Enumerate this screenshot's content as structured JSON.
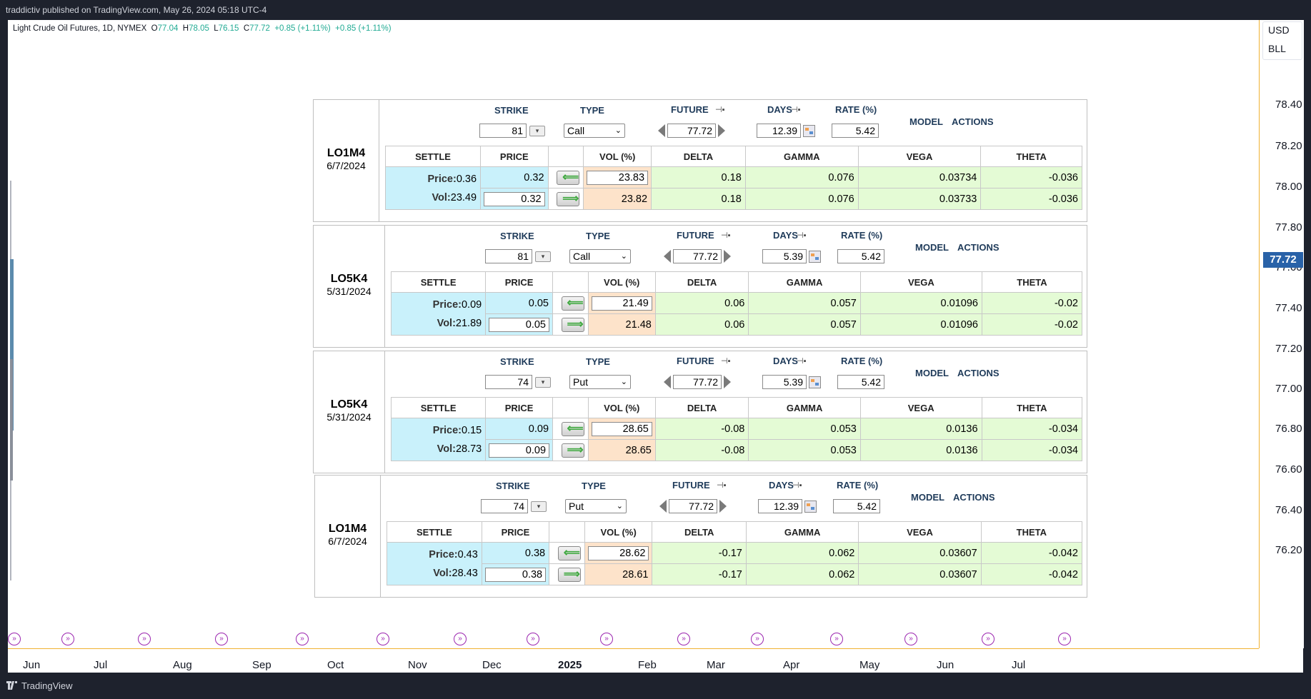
{
  "topbar": {
    "text": "traddictiv published on TradingView.com, May 26, 2024 05:18 UTC-4"
  },
  "legend": {
    "symbol": "Light Crude Oil Futures, 1D, NYMEX",
    "o_label": "O",
    "o": "77.04",
    "h_label": "H",
    "h": "78.05",
    "l_label": "L",
    "l": "76.15",
    "c_label": "C",
    "c": "77.72",
    "chg1": "+0.85 (+1.11%)",
    "chg2": "+0.85 (+1.11%)"
  },
  "price_axis": {
    "currency": "USD",
    "unit": "BLL",
    "ticks": [
      "78.40",
      "78.20",
      "78.00",
      "77.80",
      "77.60",
      "77.40",
      "77.20",
      "77.00",
      "76.80",
      "76.60",
      "76.40",
      "76.20"
    ],
    "current": "77.72"
  },
  "time_axis": {
    "months": [
      "Jun",
      "Jul",
      "Aug",
      "Sep",
      "Oct",
      "Nov",
      "Dec",
      "2025",
      "Feb",
      "Mar",
      "Apr",
      "May",
      "Jun",
      "Jul"
    ]
  },
  "labels": {
    "strike": "STRIKE",
    "type": "TYPE",
    "future": "FUTURE",
    "days": "DAYS",
    "rate": "RATE (%)",
    "model": "MODEL",
    "actions": "ACTIONS",
    "settle": "SETTLE",
    "price": "PRICE",
    "vol": "VOL (%)",
    "delta": "DELTA",
    "gamma": "GAMMA",
    "vega": "VEGA",
    "theta": "THETA",
    "settle_price": "Price:",
    "settle_vol": "Vol:"
  },
  "panels": [
    {
      "code": "LO1M4",
      "date": "6/7/2024",
      "strike": "81",
      "type": "Call",
      "future": "77.72",
      "days": "12.39",
      "rate": "5.42",
      "settle_price": "0.36",
      "settle_vol": "23.49",
      "row1": {
        "price": "0.32",
        "vol": "23.83",
        "delta": "0.18",
        "gamma": "0.076",
        "vega": "0.03734",
        "theta": "-0.036"
      },
      "row2": {
        "price": "0.32",
        "vol": "23.82",
        "delta": "0.18",
        "gamma": "0.076",
        "vega": "0.03733",
        "theta": "-0.036"
      }
    },
    {
      "code": "LO5K4",
      "date": "5/31/2024",
      "strike": "81",
      "type": "Call",
      "future": "77.72",
      "days": "5.39",
      "rate": "5.42",
      "settle_price": "0.09",
      "settle_vol": "21.89",
      "row1": {
        "price": "0.05",
        "vol": "21.49",
        "delta": "0.06",
        "gamma": "0.057",
        "vega": "0.01096",
        "theta": "-0.02"
      },
      "row2": {
        "price": "0.05",
        "vol": "21.48",
        "delta": "0.06",
        "gamma": "0.057",
        "vega": "0.01096",
        "theta": "-0.02"
      }
    },
    {
      "code": "LO5K4",
      "date": "5/31/2024",
      "strike": "74",
      "type": "Put",
      "future": "77.72",
      "days": "5.39",
      "rate": "5.42",
      "settle_price": "0.15",
      "settle_vol": "28.73",
      "row1": {
        "price": "0.09",
        "vol": "28.65",
        "delta": "-0.08",
        "gamma": "0.053",
        "vega": "0.0136",
        "theta": "-0.034"
      },
      "row2": {
        "price": "0.09",
        "vol": "28.65",
        "delta": "-0.08",
        "gamma": "0.053",
        "vega": "0.0136",
        "theta": "-0.034"
      }
    },
    {
      "code": "LO1M4",
      "date": "6/7/2024",
      "strike": "74",
      "type": "Put",
      "future": "77.72",
      "days": "12.39",
      "rate": "5.42",
      "settle_price": "0.43",
      "settle_vol": "28.43",
      "row1": {
        "price": "0.38",
        "vol": "28.62",
        "delta": "-0.17",
        "gamma": "0.062",
        "vega": "0.03607",
        "theta": "-0.042"
      },
      "row2": {
        "price": "0.38",
        "vol": "28.61",
        "delta": "-0.17",
        "gamma": "0.062",
        "vega": "0.03607",
        "theta": "-0.042"
      }
    }
  ],
  "footer": {
    "brand": "TradingView"
  },
  "colors": {
    "accent": "#2962a8",
    "axis_line": "#f0b232",
    "event": "#9c27b0",
    "cyan_cell": "#c9f1fb",
    "orange_cell": "#fde3ca",
    "green_cell": "#e4fbd5"
  }
}
